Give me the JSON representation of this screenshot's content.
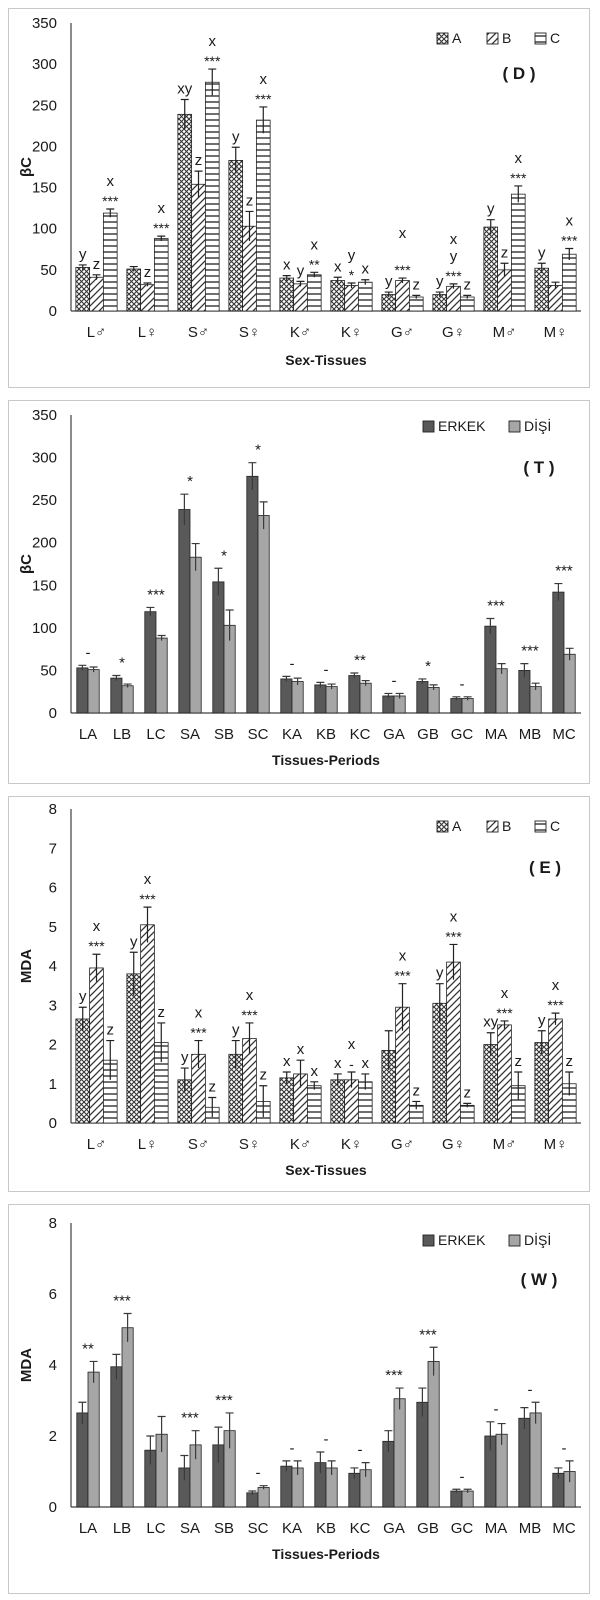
{
  "chart_data": [
    {
      "id": "D",
      "type": "bar",
      "panel_label": "( D )",
      "xlabel": "Sex-Tissues",
      "ylabel": "βC",
      "ylim": [
        0,
        350
      ],
      "ytick_step": 50,
      "legend_position": "top-right",
      "categories": [
        "L♂",
        "L♀",
        "S♂",
        "S♀",
        "K♂",
        "K♀",
        "G♂",
        "G♀",
        "M♂",
        "M♀"
      ],
      "series": [
        {
          "name": "A",
          "pattern": "dots",
          "values": [
            53,
            51,
            239,
            183,
            40,
            37,
            20,
            20,
            102,
            52
          ],
          "errors": [
            3,
            3,
            18,
            16,
            3,
            4,
            3,
            3,
            9,
            6
          ],
          "labels": [
            "y",
            "",
            "xy",
            "y",
            "x",
            "x",
            "y",
            "y",
            "y",
            "y"
          ]
        },
        {
          "name": "B",
          "pattern": "diag",
          "values": [
            41,
            32,
            154,
            103,
            33,
            31,
            37,
            30,
            50,
            31
          ],
          "errors": [
            3,
            2,
            16,
            18,
            3,
            3,
            3,
            3,
            8,
            4
          ],
          "labels": [
            "z",
            "z",
            "z",
            "z",
            "y",
            "y",
            "",
            "y",
            "z",
            ""
          ],
          "stars": [
            "",
            "",
            "",
            "",
            "",
            "*",
            "***",
            "***",
            "",
            ""
          ]
        },
        {
          "name": "C",
          "pattern": "hlines",
          "values": [
            119,
            88,
            278,
            232,
            44,
            35,
            17,
            17,
            142,
            69
          ],
          "errors": [
            5,
            3,
            16,
            16,
            3,
            3,
            2,
            2,
            10,
            7
          ],
          "labels": [
            "x",
            "x",
            "x",
            "x",
            "x",
            "x",
            "z",
            "z",
            "x",
            "x"
          ],
          "stars": [
            "***",
            "***",
            "***",
            "***",
            "**",
            "",
            "",
            "",
            "***",
            "***"
          ]
        }
      ],
      "extra_labels": [
        {
          "category": "G♂",
          "text": "x"
        },
        {
          "category": "G♀",
          "text": "x"
        }
      ]
    },
    {
      "id": "T",
      "type": "bar",
      "panel_label": "( T )",
      "xlabel": "Tissues-Periods",
      "ylabel": "βC",
      "ylim": [
        0,
        350
      ],
      "ytick_step": 50,
      "legend_position": "top-right",
      "categories": [
        "LA",
        "LB",
        "LC",
        "SA",
        "SB",
        "SC",
        "KA",
        "KB",
        "KC",
        "GA",
        "GB",
        "GC",
        "MA",
        "MB",
        "MC"
      ],
      "series": [
        {
          "name": "ERKEK",
          "color": "#595959",
          "values": [
            53,
            41,
            119,
            239,
            154,
            278,
            40,
            33,
            44,
            20,
            37,
            17,
            102,
            50,
            142
          ],
          "errors": [
            3,
            3,
            5,
            18,
            16,
            16,
            3,
            3,
            3,
            3,
            3,
            2,
            9,
            8,
            10
          ]
        },
        {
          "name": "DİŞİ",
          "color": "#a6a6a6",
          "values": [
            51,
            32,
            88,
            183,
            103,
            232,
            37,
            31,
            35,
            20,
            30,
            17,
            52,
            31,
            69
          ],
          "errors": [
            3,
            2,
            3,
            16,
            18,
            16,
            4,
            3,
            3,
            3,
            3,
            2,
            6,
            4,
            7
          ]
        }
      ],
      "significance": [
        "-",
        "*",
        "***",
        "*",
        "*",
        "*",
        "-",
        "-",
        "**",
        "-",
        "*",
        "-",
        "***",
        "***",
        "***"
      ]
    },
    {
      "id": "E",
      "type": "bar",
      "panel_label": "( E )",
      "xlabel": "Sex-Tissues",
      "ylabel": "MDA",
      "ylim": [
        0,
        8
      ],
      "ytick_step": 1,
      "legend_position": "top-right",
      "categories": [
        "L♂",
        "L♀",
        "S♂",
        "S♀",
        "K♂",
        "K♀",
        "G♂",
        "G♀",
        "M♂",
        "M♀"
      ],
      "series": [
        {
          "name": "A",
          "pattern": "dots",
          "values": [
            2.65,
            3.8,
            1.1,
            1.75,
            1.15,
            1.1,
            1.85,
            3.05,
            2.0,
            2.05
          ],
          "errors": [
            0.3,
            0.55,
            0.3,
            0.35,
            0.15,
            0.15,
            0.5,
            0.5,
            0.3,
            0.3
          ],
          "labels": [
            "y",
            "y",
            "y",
            "y",
            "x",
            "x",
            "",
            "y",
            "xy",
            "y"
          ]
        },
        {
          "name": "B",
          "pattern": "diag",
          "values": [
            3.95,
            5.05,
            1.75,
            2.15,
            1.25,
            1.1,
            2.95,
            4.1,
            2.5,
            2.65
          ],
          "errors": [
            0.35,
            0.45,
            0.35,
            0.4,
            0.35,
            0.2,
            0.6,
            0.45,
            0.1,
            0.15
          ],
          "labels": [
            "x",
            "x",
            "x",
            "x",
            "x",
            "x",
            "x",
            "x",
            "x",
            "x"
          ],
          "stars": [
            "***",
            "***",
            "***",
            "***",
            "",
            "-",
            "***",
            "***",
            "***",
            "***"
          ]
        },
        {
          "name": "C",
          "pattern": "hlines",
          "values": [
            1.6,
            2.05,
            0.4,
            0.55,
            0.95,
            1.05,
            0.45,
            0.45,
            0.95,
            1.0
          ],
          "errors": [
            0.5,
            0.5,
            0.25,
            0.4,
            0.1,
            0.2,
            0.1,
            0.05,
            0.35,
            0.3
          ],
          "labels": [
            "z",
            "z",
            "z",
            "z",
            "x",
            "x",
            "z",
            "z",
            "z",
            "z"
          ]
        }
      ]
    },
    {
      "id": "W",
      "type": "bar",
      "panel_label": "( W )",
      "xlabel": "Tissues-Periods",
      "ylabel": "MDA",
      "ylim": [
        0,
        8
      ],
      "ytick_step": 2,
      "legend_position": "top-right",
      "categories": [
        "LA",
        "LB",
        "LC",
        "SA",
        "SB",
        "SC",
        "KA",
        "KB",
        "KC",
        "GA",
        "GB",
        "GC",
        "MA",
        "MB",
        "MC"
      ],
      "series": [
        {
          "name": "ERKEK",
          "color": "#595959",
          "values": [
            2.65,
            3.95,
            1.6,
            1.1,
            1.75,
            0.4,
            1.15,
            1.25,
            0.95,
            1.85,
            2.95,
            0.45,
            2.0,
            2.5,
            0.95
          ],
          "errors": [
            0.3,
            0.35,
            0.4,
            0.35,
            0.5,
            0.05,
            0.15,
            0.3,
            0.15,
            0.3,
            0.4,
            0.05,
            0.4,
            0.3,
            0.15
          ]
        },
        {
          "name": "DİŞİ",
          "color": "#a6a6a6",
          "values": [
            3.8,
            5.05,
            2.05,
            1.75,
            2.15,
            0.55,
            1.1,
            1.1,
            1.05,
            3.05,
            4.1,
            0.45,
            2.05,
            2.65,
            1.0
          ],
          "errors": [
            0.3,
            0.4,
            0.5,
            0.4,
            0.5,
            0.05,
            0.2,
            0.2,
            0.2,
            0.3,
            0.4,
            0.05,
            0.3,
            0.3,
            0.3
          ]
        }
      ],
      "significance": [
        "**",
        "***",
        "",
        "***",
        "***",
        "-",
        "-",
        "-",
        "-",
        "***",
        "***",
        "-",
        "-",
        "-",
        "-"
      ]
    }
  ]
}
